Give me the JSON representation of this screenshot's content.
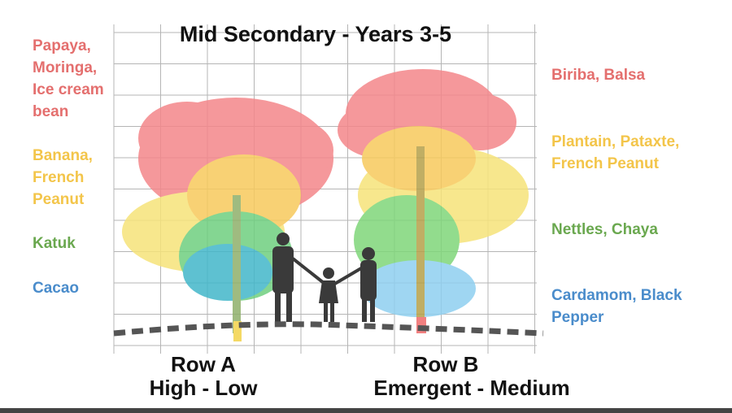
{
  "title": "Mid Secondary - Years 3-5",
  "left_labels": [
    {
      "lines": [
        "Papaya,",
        "Moringa,",
        "Ice cream",
        "bean"
      ]
    },
    {
      "lines": [
        "Banana,",
        "French",
        "Peanut"
      ]
    },
    {
      "lines": [
        "Katuk"
      ]
    },
    {
      "lines": [
        "Cacao"
      ]
    }
  ],
  "right_labels": [
    {
      "lines": [
        "Biriba, Balsa"
      ]
    },
    {
      "lines": [
        "Plantain, Pataxte,",
        "French Peanut"
      ]
    },
    {
      "lines": [
        "Nettles, Chaya"
      ]
    },
    {
      "lines": [
        "Cardamom, Black",
        "Pepper"
      ]
    }
  ],
  "rows": [
    {
      "name": "Row A",
      "layer": "High - Low"
    },
    {
      "name": "Row B",
      "layer": "Emergent - Medium"
    }
  ]
}
